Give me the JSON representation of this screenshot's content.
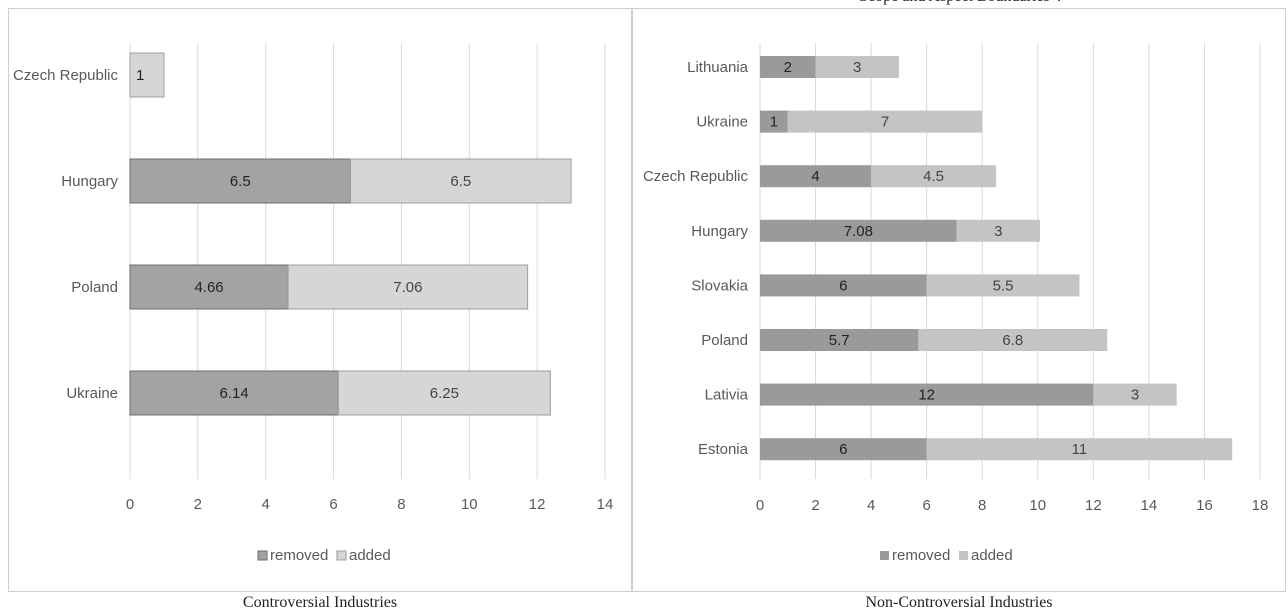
{
  "top_title": "Scope and Aspect Boundaries”.",
  "captions": {
    "left": "Controversial Industries",
    "right": "Non-Controversial Industries"
  },
  "colors": {
    "removed": "#9a9a9a",
    "removed_left": "#a3a3a3",
    "added": "#c4c4c4",
    "added_left": "#d6d6d6",
    "grid": "#d9d9d9",
    "text": "#595959"
  },
  "chart_data": [
    {
      "type": "bar",
      "orientation": "horizontal",
      "stacked": true,
      "categories": [
        "Czech Republic",
        "Hungary",
        "Poland",
        "Ukraine"
      ],
      "series": [
        {
          "name": "removed",
          "values": [
            0,
            6.5,
            4.66,
            6.14
          ],
          "labels": [
            "",
            "6.5",
            "4.66",
            "6.14"
          ]
        },
        {
          "name": "added",
          "values": [
            1,
            6.5,
            7.06,
            6.25
          ],
          "labels": [
            "1",
            "6.5",
            "7.06",
            "6.25"
          ]
        }
      ],
      "xlim": [
        0,
        14
      ],
      "xticks": [
        0,
        2,
        4,
        6,
        8,
        10,
        12,
        14
      ],
      "grid": true,
      "legend": "bottom"
    },
    {
      "type": "bar",
      "orientation": "horizontal",
      "stacked": true,
      "categories": [
        "Lithuania",
        "Ukraine",
        "Czech Republic",
        "Hungary",
        "Slovakia",
        "Poland",
        "Lativia",
        "Estonia"
      ],
      "series": [
        {
          "name": "removed",
          "values": [
            2,
            1,
            4,
            7.08,
            6,
            5.7,
            12,
            6
          ],
          "labels": [
            "2",
            "1",
            "4",
            "7.08",
            "6",
            "5.7",
            "12",
            "6"
          ]
        },
        {
          "name": "added",
          "values": [
            3,
            7,
            4.5,
            3,
            5.5,
            6.8,
            3,
            11
          ],
          "labels": [
            "3",
            "7",
            "4.5",
            "3",
            "5.5",
            "6.8",
            "3",
            "11"
          ]
        }
      ],
      "xlim": [
        0,
        18
      ],
      "xticks": [
        0,
        2,
        4,
        6,
        8,
        10,
        12,
        14,
        16,
        18
      ],
      "grid": true,
      "legend": "bottom"
    }
  ]
}
